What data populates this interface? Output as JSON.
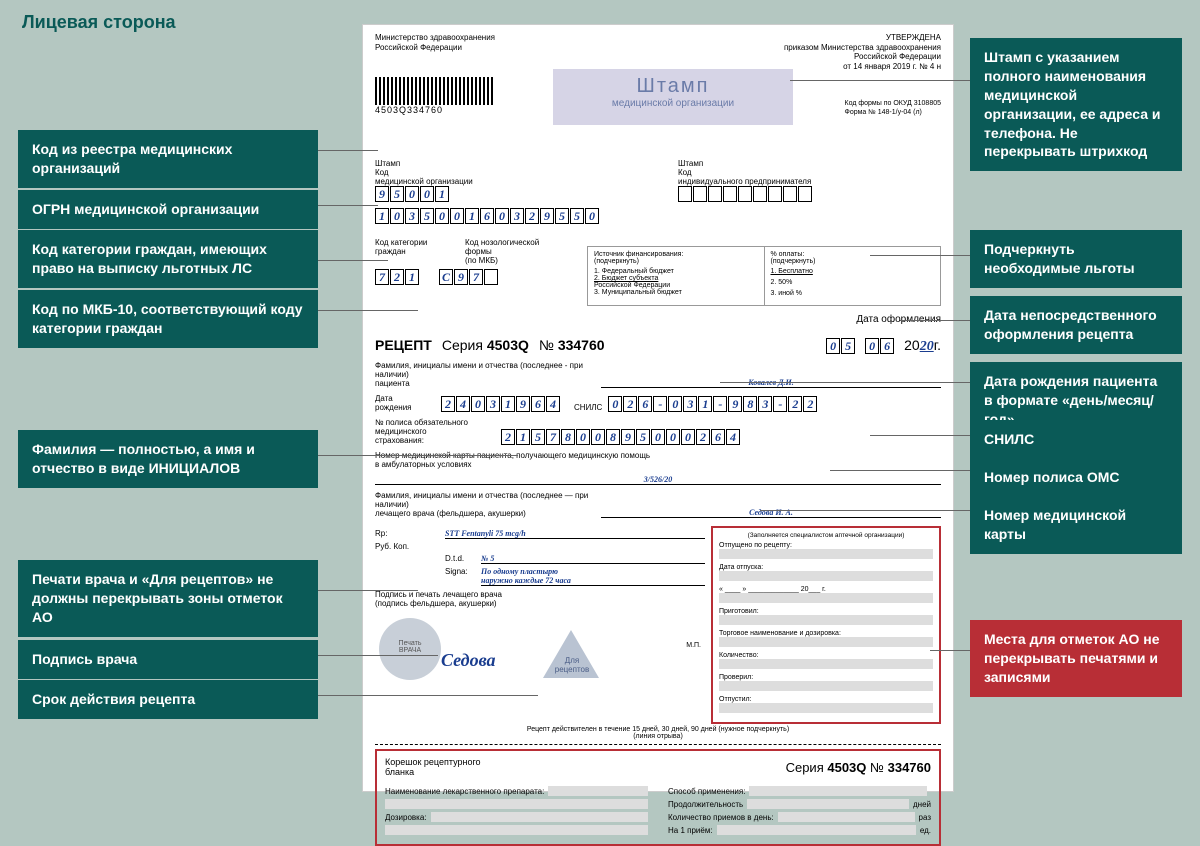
{
  "colors": {
    "bg": "#b4c7c1",
    "teal": "#0a5a57",
    "red": "#b82e36",
    "hand": "#1a3d8f"
  },
  "title": "Лицевая сторона",
  "header": {
    "left": "Министерство здравоохранения\nРоссийской Федерации",
    "right": "УТВЕРЖДЕНА\nприказом Министерства здравоохранения\nРоссийской Федерации\nот 14 января 2019 г. № 4 н",
    "barcode_num": "4503Q334760",
    "okud": "Код формы по ОКУД 3108805\nФорма № 148-1/у-04 (л)"
  },
  "stamp": {
    "big": "Штамп",
    "sub": "медицинской организации"
  },
  "org": {
    "left_label": "Штамп\nКод\nмедицинской организации",
    "code": [
      "9",
      "5",
      "0",
      "0",
      "1"
    ],
    "right_label": "Штамп\nКод\nиндивидуального предпринимателя",
    "ogrn": [
      "1",
      "0",
      "3",
      "5",
      "0",
      "0",
      "1",
      "6",
      "0",
      "3",
      "2",
      "9",
      "5",
      "5",
      "0"
    ]
  },
  "cat": {
    "l1": "Код категории\nграждан",
    "l2": "Код нозологической\nформы\n(по МКБ)",
    "code1": [
      "7",
      "2",
      "1"
    ],
    "code2": [
      "C",
      "9",
      "7"
    ],
    "fin_title": "Источник финансирования:\n(подчеркнуть)",
    "fin_items": [
      "1. Федеральный бюджет",
      "2. Бюджет субъекта",
      "Российской Федерации",
      "3. Муниципальный бюджет"
    ],
    "pay_title": "% оплаты:\n(подчеркнуть)",
    "pay_items": [
      "1. Бесплатно",
      "2. 50%",
      "3. иной %"
    ]
  },
  "recept": {
    "word": "РЕЦЕПТ",
    "seria_lbl": "Серия",
    "seria": "4503Q",
    "num_lbl": "№",
    "num": "334760",
    "date_lbl": "Дата оформления",
    "d": [
      "0",
      "5"
    ],
    "m": [
      "0",
      "6"
    ],
    "y_prefix": "20",
    "y": "20",
    "y_suffix": "г."
  },
  "patient": {
    "fio_lbl": "Фамилия, инициалы имени и отчества (последнее - при наличии)\nпациента",
    "fio": "Ковалев Д.И.",
    "dob_lbl": "Дата\nрождения",
    "dob": [
      "2",
      "4",
      "0",
      "3",
      "1",
      "9",
      "6",
      "4"
    ],
    "snils_lbl": "СНИЛС",
    "snils": [
      "0",
      "2",
      "6",
      "-",
      "0",
      "3",
      "1",
      "-",
      "9",
      "8",
      "3",
      "-",
      "2",
      "2"
    ],
    "polis_lbl": "№ полиса обязательного\nмедицинского\nстрахования:",
    "polis": [
      "2",
      "1",
      "5",
      "7",
      "8",
      "0",
      "0",
      "8",
      "9",
      "5",
      "0",
      "0",
      "0",
      "2",
      "6",
      "4"
    ],
    "card_lbl": "Номер медицинской карты пациента, получающего медицинскую помощь\nв амбулаторных условиях",
    "card": "3/526/20",
    "doctor_lbl": "Фамилия, инициалы имени и отчества (последнее — при наличии)\nлечащего врача (фельдшера, акушерки)",
    "doctor": "Седова И. А."
  },
  "rp": {
    "rp_lbl": "Rp:",
    "drug": "STT Fentanyli 75 mcg/h",
    "rub": "Руб.  Коп.",
    "dtd_lbl": "D.t.d.",
    "dtd": "№ 5",
    "signa_lbl": "Signa:",
    "signa": "По одному пластырю\nнаружно каждые 72 часа",
    "sign_lbl": "Подпись и печать лечащего врача\n(подпись фельдшера, акушерки)",
    "mp": "М.П.",
    "seal1": "Печать\nВРАЧА",
    "sig": "Седова",
    "seal2": "Для\nрецептов",
    "valid": "Рецепт действителен в течение 15 дней, 30 дней, 90 дней (нужное подчеркнуть)\n(линия отрыва)"
  },
  "apteka": {
    "title": "(Заполняется специалистом аптечной организации)",
    "rows": [
      "Отпущено по рецепту:",
      "Дата отпуска:",
      "« ____ » _____________ 20___ г.",
      "Приготовил:",
      "Торговое наименование и дозировка:",
      "Количество:",
      "Проверил:",
      "Отпустил:"
    ]
  },
  "stub": {
    "title": "Корешок рецептурного\nбланка",
    "seria_lbl": "Серия",
    "seria": "4503Q",
    "num_lbl": "№",
    "num": "334760",
    "left": [
      "Наименование лекарственного препарата:",
      "Дозировка:"
    ],
    "right": [
      {
        "l": "Способ применения:",
        "u": ""
      },
      {
        "l": "Продолжительность",
        "u": "дней"
      },
      {
        "l": "Количество приемов в день:",
        "u": "раз"
      },
      {
        "l": "На 1 приём:",
        "u": "ед."
      }
    ]
  },
  "callouts": {
    "l1": "Код из реестра медицинских организаций",
    "l2": "ОГРН медицинской организации",
    "l3": "Код категории граждан, имеющих право на выписку льготных ЛС",
    "l4": "Код по МКБ-10, соответствующий коду категории граждан",
    "l5": "Фамилия — полностью, а имя и отчество в виде ИНИЦИАЛОВ",
    "l6": "Печати врача и «Для рецептов» не должны перекрывать зоны отметок АО",
    "l7": "Подпись врача",
    "l8": "Срок действия рецепта",
    "r1": "Штамп с указанием полного наименования медицинской организации, ее адреса и телефона. Не перекрывать штрихкод",
    "r2": "Подчеркнуть необходимые льготы",
    "r3": "Дата непосредственного оформления рецепта",
    "r4": "Дата рождения пациента в формате «день/месяц/год»",
    "r5": "СНИЛС",
    "r6": "Номер полиса ОМС",
    "r7": "Номер медицинской карты",
    "r8": "Места для отметок АО не перекрывать печатями и записями"
  }
}
